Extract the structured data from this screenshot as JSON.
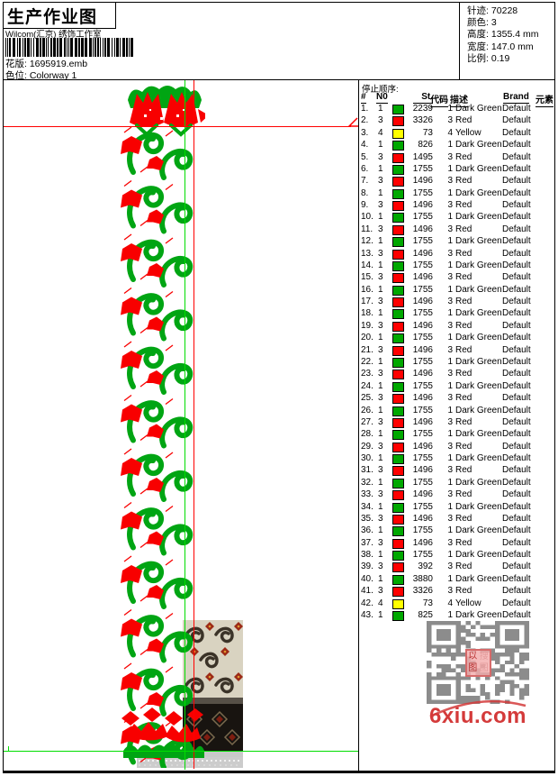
{
  "header": {
    "title": "生产作业图",
    "studio": "Wilcom(汇京) 绣饰工作室",
    "pattern_label": "花版:",
    "pattern_file": "1695919.emb",
    "colorway_label": "色位:",
    "colorway": "Colorway 1"
  },
  "info": {
    "stitches_label": "针迹:",
    "stitches": "70228",
    "colors_label": "颜色:",
    "colors": "3",
    "height_label": "高度:",
    "height": "1355.4 mm",
    "width_label": "宽度:",
    "width": "147.0 mm",
    "scale_label": "比例:",
    "scale": "0.19"
  },
  "stop_sequence": {
    "title": "停止顺序:",
    "headers": [
      "#",
      "N0",
      "St.",
      "代码",
      "描述",
      "Brand",
      "元素"
    ],
    "rows": [
      [
        "1.",
        "1",
        "green",
        "2239",
        "1",
        "Dark Green",
        "Default"
      ],
      [
        "2.",
        "3",
        "red",
        "3326",
        "3",
        "Red",
        "Default"
      ],
      [
        "3.",
        "4",
        "yellow",
        "73",
        "4",
        "Yellow",
        "Default"
      ],
      [
        "4.",
        "1",
        "green",
        "826",
        "1",
        "Dark Green",
        "Default"
      ],
      [
        "5.",
        "3",
        "red",
        "1495",
        "3",
        "Red",
        "Default"
      ],
      [
        "6.",
        "1",
        "green",
        "1755",
        "1",
        "Dark Green",
        "Default"
      ],
      [
        "7.",
        "3",
        "red",
        "1496",
        "3",
        "Red",
        "Default"
      ],
      [
        "8.",
        "1",
        "green",
        "1755",
        "1",
        "Dark Green",
        "Default"
      ],
      [
        "9.",
        "3",
        "red",
        "1496",
        "3",
        "Red",
        "Default"
      ],
      [
        "10.",
        "1",
        "green",
        "1755",
        "1",
        "Dark Green",
        "Default"
      ],
      [
        "11.",
        "3",
        "red",
        "1496",
        "3",
        "Red",
        "Default"
      ],
      [
        "12.",
        "1",
        "green",
        "1755",
        "1",
        "Dark Green",
        "Default"
      ],
      [
        "13.",
        "3",
        "red",
        "1496",
        "3",
        "Red",
        "Default"
      ],
      [
        "14.",
        "1",
        "green",
        "1755",
        "1",
        "Dark Green",
        "Default"
      ],
      [
        "15.",
        "3",
        "red",
        "1496",
        "3",
        "Red",
        "Default"
      ],
      [
        "16.",
        "1",
        "green",
        "1755",
        "1",
        "Dark Green",
        "Default"
      ],
      [
        "17.",
        "3",
        "red",
        "1496",
        "3",
        "Red",
        "Default"
      ],
      [
        "18.",
        "1",
        "green",
        "1755",
        "1",
        "Dark Green",
        "Default"
      ],
      [
        "19.",
        "3",
        "red",
        "1496",
        "3",
        "Red",
        "Default"
      ],
      [
        "20.",
        "1",
        "green",
        "1755",
        "1",
        "Dark Green",
        "Default"
      ],
      [
        "21.",
        "3",
        "red",
        "1496",
        "3",
        "Red",
        "Default"
      ],
      [
        "22.",
        "1",
        "green",
        "1755",
        "1",
        "Dark Green",
        "Default"
      ],
      [
        "23.",
        "3",
        "red",
        "1496",
        "3",
        "Red",
        "Default"
      ],
      [
        "24.",
        "1",
        "green",
        "1755",
        "1",
        "Dark Green",
        "Default"
      ],
      [
        "25.",
        "3",
        "red",
        "1496",
        "3",
        "Red",
        "Default"
      ],
      [
        "26.",
        "1",
        "green",
        "1755",
        "1",
        "Dark Green",
        "Default"
      ],
      [
        "27.",
        "3",
        "red",
        "1496",
        "3",
        "Red",
        "Default"
      ],
      [
        "28.",
        "1",
        "green",
        "1755",
        "1",
        "Dark Green",
        "Default"
      ],
      [
        "29.",
        "3",
        "red",
        "1496",
        "3",
        "Red",
        "Default"
      ],
      [
        "30.",
        "1",
        "green",
        "1755",
        "1",
        "Dark Green",
        "Default"
      ],
      [
        "31.",
        "3",
        "red",
        "1496",
        "3",
        "Red",
        "Default"
      ],
      [
        "32.",
        "1",
        "green",
        "1755",
        "1",
        "Dark Green",
        "Default"
      ],
      [
        "33.",
        "3",
        "red",
        "1496",
        "3",
        "Red",
        "Default"
      ],
      [
        "34.",
        "1",
        "green",
        "1755",
        "1",
        "Dark Green",
        "Default"
      ],
      [
        "35.",
        "3",
        "red",
        "1496",
        "3",
        "Red",
        "Default"
      ],
      [
        "36.",
        "1",
        "green",
        "1755",
        "1",
        "Dark Green",
        "Default"
      ],
      [
        "37.",
        "3",
        "red",
        "1496",
        "3",
        "Red",
        "Default"
      ],
      [
        "38.",
        "1",
        "green",
        "1755",
        "1",
        "Dark Green",
        "Default"
      ],
      [
        "39.",
        "3",
        "red",
        "392",
        "3",
        "Red",
        "Default"
      ],
      [
        "40.",
        "1",
        "green",
        "3880",
        "1",
        "Dark Green",
        "Default"
      ],
      [
        "41.",
        "3",
        "red",
        "3326",
        "3",
        "Red",
        "Default"
      ],
      [
        "42.",
        "4",
        "yellow",
        "73",
        "4",
        "Yellow",
        "Default"
      ],
      [
        "43.",
        "1",
        "green",
        "825",
        "1",
        "Dark Green",
        "Default"
      ]
    ]
  },
  "swatch_colors": {
    "green": "#00a800",
    "red": "#ff0000",
    "yellow": "#ffff00"
  },
  "design_colors": {
    "thread_green": "#00a513",
    "thread_red": "#f80000"
  },
  "watermark": {
    "site": "6xiu.com",
    "stamp_chars": [
      "以",
      "搜",
      "图",
      "图"
    ],
    "color": "#d43a3a"
  }
}
